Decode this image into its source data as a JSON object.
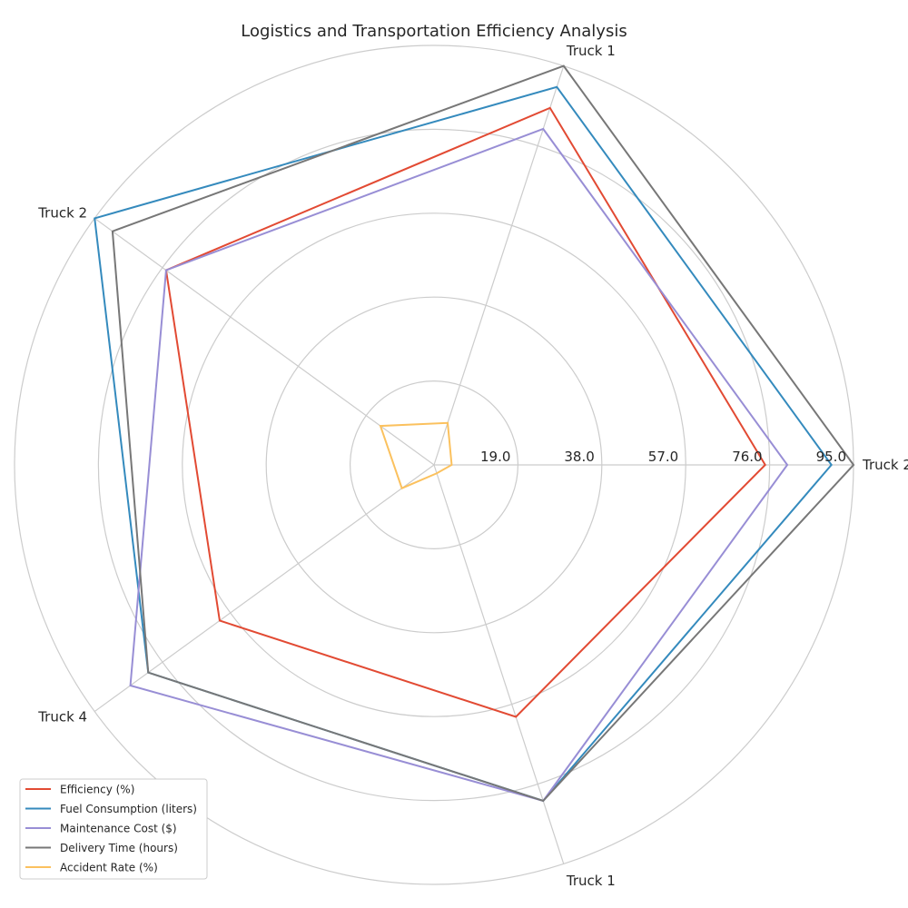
{
  "chart_data": {
    "type": "radar",
    "title": "Logistics and Transportation Efficiency Analysis",
    "categories": [
      "Truck 2",
      "Truck 1",
      "Truck 2",
      "Truck 4",
      "Truck 1"
    ],
    "radial_ticks": [
      "19.0",
      "38.0",
      "57.0",
      "76.0",
      "95.0"
    ],
    "rlim": [
      0,
      95
    ],
    "grid": true,
    "legend_position": "lower-left",
    "series": [
      {
        "name": "Efficiency (%)",
        "color": "#E24A33",
        "values": [
          75,
          85,
          75,
          60,
          60
        ]
      },
      {
        "name": "Fuel Consumption (liters)",
        "color": "#348ABD",
        "values": [
          90,
          90,
          95,
          80,
          80
        ]
      },
      {
        "name": "Maintenance Cost ($)",
        "color": "#988ED5",
        "values": [
          80,
          80,
          75,
          85,
          80
        ]
      },
      {
        "name": "Delivery Time (hours)",
        "color": "#777777",
        "values": [
          95,
          95,
          90,
          80,
          80
        ]
      },
      {
        "name": "Accident Rate (%)",
        "color": "#FBC15E",
        "values": [
          4,
          10,
          15,
          9,
          2
        ]
      }
    ]
  }
}
